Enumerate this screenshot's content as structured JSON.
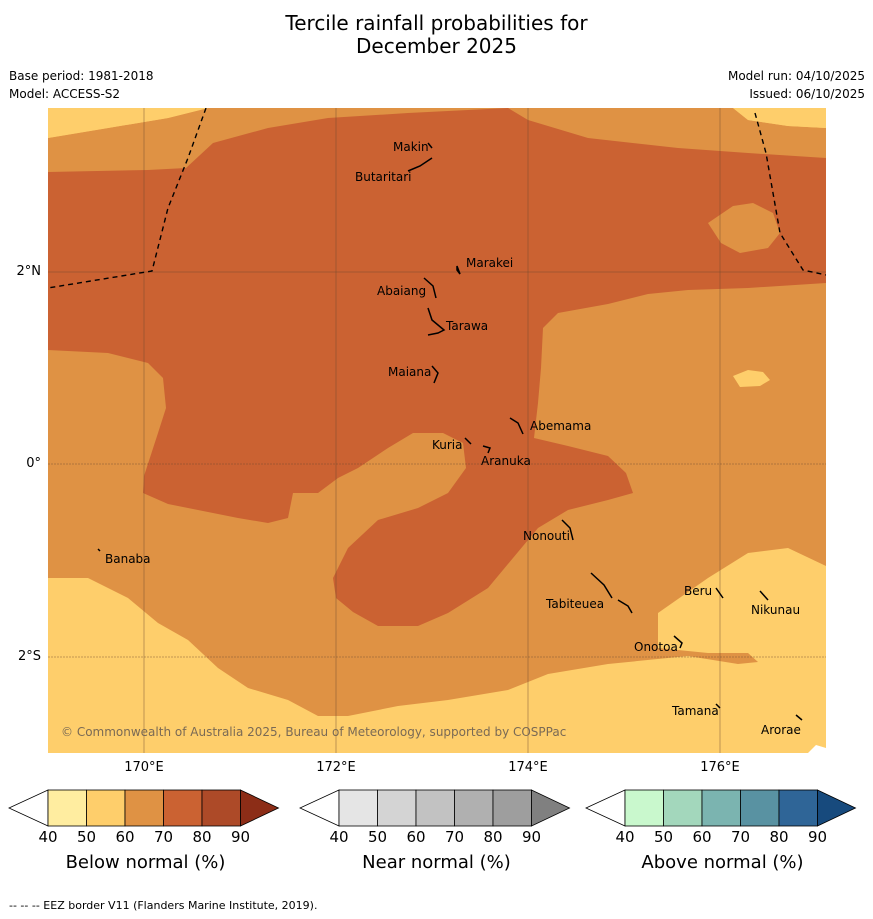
{
  "title": {
    "line1": "Tercile rainfall probabilities for",
    "line2": "December 2025"
  },
  "meta": {
    "base_period": "Base period: 1981-2018",
    "model": "Model: ACCESS-S2",
    "model_run": "Model run: 04/10/2025",
    "issued": "Issued: 06/10/2025"
  },
  "map": {
    "copyright": "© Commonwealth of Australia 2025, Bureau of Meteorology, supported by COSPPac",
    "lon_labels": [
      "170°E",
      "172°E",
      "174°E",
      "176°E"
    ],
    "lat_labels": [
      "2°N",
      "0°",
      "2°S"
    ],
    "places": [
      "Makin",
      "Butaritari",
      "Marakei",
      "Abaiang",
      "Tarawa",
      "Maiana",
      "Abemama",
      "Kuria",
      "Aranuka",
      "Banaba",
      "Nonouti",
      "Beru",
      "Nikunau",
      "Tabiteuea",
      "Onotoa",
      "Tamana",
      "Arorae"
    ],
    "colors": {
      "below_40_50": "#fece6b",
      "below_50_60": "#df9244",
      "below_60_70": "#cb6232",
      "ocean_bg": "#fece6b"
    }
  },
  "colorbars": [
    {
      "title": "Below normal (%)",
      "ticks": [
        "40",
        "50",
        "60",
        "70",
        "80",
        "90"
      ],
      "colors": [
        "#ffffff",
        "#ffeda0",
        "#fece6b",
        "#df9244",
        "#cb6232",
        "#ad4a28",
        "#8c2d17"
      ]
    },
    {
      "title": "Near normal (%)",
      "ticks": [
        "40",
        "50",
        "60",
        "70",
        "80",
        "90"
      ],
      "colors": [
        "#ffffff",
        "#e5e5e5",
        "#d4d4d4",
        "#c2c2c2",
        "#b0b0b0",
        "#9e9e9e",
        "#808080"
      ]
    },
    {
      "title": "Above normal (%)",
      "ticks": [
        "40",
        "50",
        "60",
        "70",
        "80",
        "90"
      ],
      "colors": [
        "#ffffff",
        "#c9f8cd",
        "#a3d7bc",
        "#7bb4b0",
        "#5992a2",
        "#2f6597",
        "#174a7d"
      ]
    }
  ],
  "footnote": "--  --  -- EEZ border V11 (Flanders Marine Institute, 2019)."
}
